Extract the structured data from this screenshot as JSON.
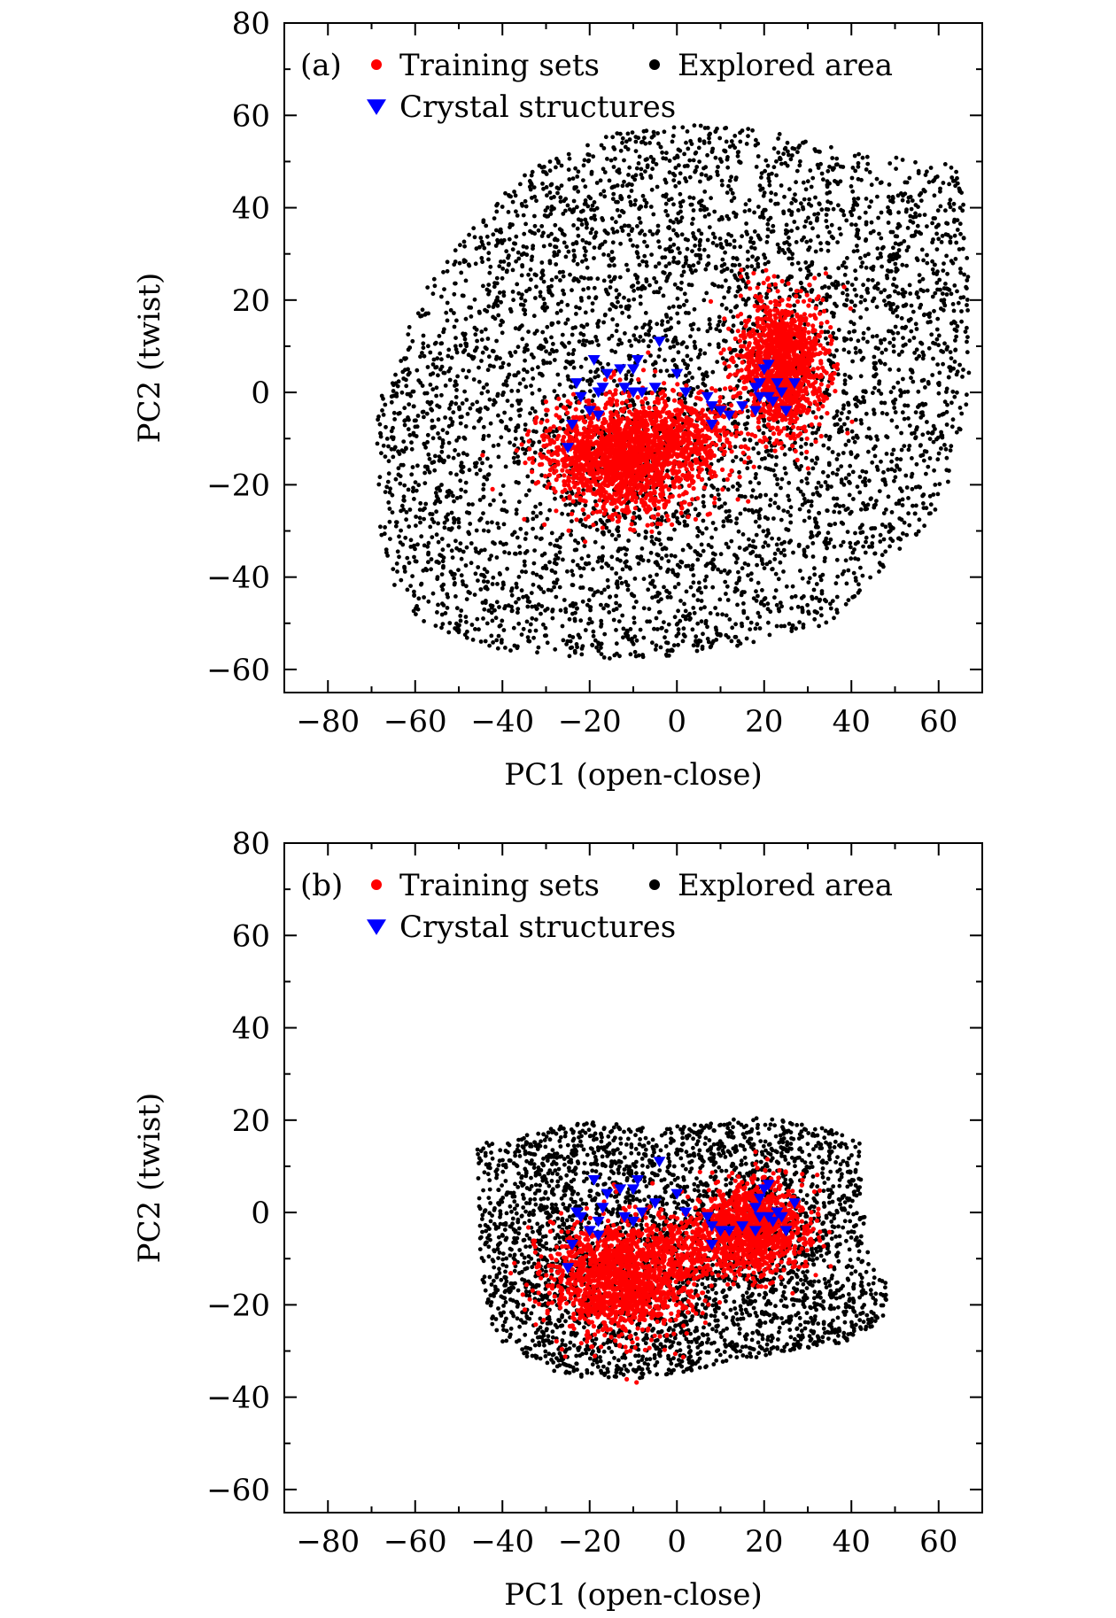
{
  "chart_data": [
    {
      "type": "scatter",
      "panel_label": "(a)",
      "xlabel": "PC1 (open-close)",
      "ylabel": "PC2 (twist)",
      "xlim": [
        -90,
        70
      ],
      "ylim": [
        -65,
        80
      ],
      "xticks": [
        -80,
        -60,
        -40,
        -20,
        0,
        20,
        40,
        60
      ],
      "yticks": [
        -60,
        -40,
        -20,
        0,
        20,
        40,
        60,
        80
      ],
      "xtick_labels": [
        "−80",
        "−60",
        "−40",
        "−20",
        "0",
        "20",
        "40",
        "60"
      ],
      "ytick_labels": [
        "−60",
        "−40",
        "−20",
        "0",
        "20",
        "40",
        "60",
        "80"
      ],
      "legend": [
        {
          "name": "Training sets",
          "marker": "circle",
          "color": "#ff0000"
        },
        {
          "name": "Explored area",
          "marker": "circle",
          "color": "#000000"
        },
        {
          "name": "Crystal structures",
          "marker": "triangle-down",
          "color": "#0000ff"
        }
      ],
      "legend_position": "top-left",
      "series": [
        {
          "name": "Explored area",
          "color": "#000000",
          "region": "wide explored region",
          "boundary": [
            [
              -69,
              -10
            ],
            [
              -68,
              -30
            ],
            [
              -64,
              -45
            ],
            [
              -55,
              -52
            ],
            [
              -40,
              -56
            ],
            [
              -20,
              -58
            ],
            [
              0,
              -57
            ],
            [
              20,
              -54
            ],
            [
              35,
              -50
            ],
            [
              48,
              -38
            ],
            [
              58,
              -28
            ],
            [
              63,
              -18
            ],
            [
              67,
              0
            ],
            [
              67,
              20
            ],
            [
              66,
              40
            ],
            [
              64,
              50
            ],
            [
              50,
              51
            ],
            [
              40,
              52
            ],
            [
              20,
              57
            ],
            [
              5,
              58
            ],
            [
              -15,
              56
            ],
            [
              -35,
              48
            ],
            [
              -48,
              35
            ],
            [
              -58,
              22
            ],
            [
              -64,
              8
            ],
            [
              -68,
              0
            ]
          ],
          "approx_count": 5000
        },
        {
          "name": "Training sets",
          "color": "#ff0000",
          "clusters": [
            {
              "center": [
                -12,
                -14
              ],
              "spread": [
                9,
                6
              ],
              "count": 1800
            },
            {
              "center": [
                24,
                6
              ],
              "spread": [
                5,
                7
              ],
              "count": 1300
            },
            {
              "center": [
                3,
                -8
              ],
              "spread": [
                7,
                4
              ],
              "count": 300
            }
          ]
        },
        {
          "name": "Crystal structures",
          "color": "#0000ff",
          "points": [
            [
              -19,
              7
            ],
            [
              -13,
              5
            ],
            [
              -9,
              7
            ],
            [
              -10,
              5
            ],
            [
              -4,
              11
            ],
            [
              -16,
              4
            ],
            [
              -23,
              2
            ],
            [
              -22,
              -1
            ],
            [
              -18,
              0
            ],
            [
              -17,
              1
            ],
            [
              -12,
              1
            ],
            [
              -10,
              0
            ],
            [
              -8,
              0
            ],
            [
              -5,
              1
            ],
            [
              0,
              4
            ],
            [
              2,
              0
            ],
            [
              7,
              -1
            ],
            [
              8,
              -3
            ],
            [
              10,
              -4
            ],
            [
              12,
              -5
            ],
            [
              -20,
              -4
            ],
            [
              -24,
              -7
            ],
            [
              -25,
              -12
            ],
            [
              -18,
              -5
            ],
            [
              8,
              -7
            ],
            [
              15,
              -3
            ],
            [
              18,
              -4
            ],
            [
              19,
              -1
            ],
            [
              19,
              2
            ],
            [
              20,
              5
            ],
            [
              21,
              6
            ],
            [
              21,
              -1
            ],
            [
              22,
              -2
            ],
            [
              23,
              2
            ],
            [
              27,
              2
            ],
            [
              25,
              -4
            ],
            [
              24,
              0
            ],
            [
              18,
              1
            ]
          ]
        }
      ]
    },
    {
      "type": "scatter",
      "panel_label": "(b)",
      "xlabel": "PC1 (open-close)",
      "ylabel": "PC2 (twist)",
      "xlim": [
        -90,
        70
      ],
      "ylim": [
        -65,
        80
      ],
      "xticks": [
        -80,
        -60,
        -40,
        -20,
        0,
        20,
        40,
        60
      ],
      "yticks": [
        -60,
        -40,
        -20,
        0,
        20,
        40,
        60,
        80
      ],
      "xtick_labels": [
        "−80",
        "−60",
        "−40",
        "−20",
        "0",
        "20",
        "40",
        "60"
      ],
      "ytick_labels": [
        "−60",
        "−40",
        "−20",
        "0",
        "20",
        "40",
        "60",
        "80"
      ],
      "legend": [
        {
          "name": "Training sets",
          "marker": "circle",
          "color": "#ff0000"
        },
        {
          "name": "Explored area",
          "marker": "circle",
          "color": "#000000"
        },
        {
          "name": "Crystal structures",
          "marker": "triangle-down",
          "color": "#0000ff"
        }
      ],
      "legend_position": "top-left",
      "series": [
        {
          "name": "Explored area",
          "color": "#000000",
          "region": "compact explored region",
          "boundary": [
            [
              -46,
              15
            ],
            [
              -45,
              -10
            ],
            [
              -44,
              -22
            ],
            [
              -40,
              -28
            ],
            [
              -30,
              -34
            ],
            [
              -20,
              -36
            ],
            [
              -5,
              -36
            ],
            [
              10,
              -33
            ],
            [
              25,
              -30
            ],
            [
              42,
              -28
            ],
            [
              48,
              -22
            ],
            [
              48,
              -15
            ],
            [
              44,
              -10
            ],
            [
              43,
              0
            ],
            [
              42,
              15
            ],
            [
              35,
              18
            ],
            [
              20,
              21
            ],
            [
              10,
              20
            ],
            [
              -5,
              18
            ],
            [
              -20,
              20
            ],
            [
              -30,
              18
            ],
            [
              -40,
              16
            ]
          ],
          "approx_count": 3400
        },
        {
          "name": "Training sets",
          "color": "#ff0000",
          "clusters": [
            {
              "center": [
                -13,
                -14
              ],
              "spread": [
                8,
                6
              ],
              "count": 1500
            },
            {
              "center": [
                18,
                -3
              ],
              "spread": [
                6,
                5
              ],
              "count": 1100
            },
            {
              "center": [
                3,
                -8
              ],
              "spread": [
                6,
                4
              ],
              "count": 250
            }
          ]
        },
        {
          "name": "Crystal structures",
          "color": "#0000ff",
          "points": [
            [
              -19,
              7
            ],
            [
              -13,
              5
            ],
            [
              -9,
              7
            ],
            [
              -10,
              5
            ],
            [
              -4,
              11
            ],
            [
              -16,
              4
            ],
            [
              -23,
              0
            ],
            [
              -22,
              -1
            ],
            [
              -18,
              -2
            ],
            [
              -17,
              1
            ],
            [
              -12,
              -1
            ],
            [
              -10,
              -2
            ],
            [
              -8,
              0
            ],
            [
              -5,
              2
            ],
            [
              0,
              4
            ],
            [
              2,
              0
            ],
            [
              7,
              -1
            ],
            [
              8,
              -3
            ],
            [
              10,
              -4
            ],
            [
              12,
              -4
            ],
            [
              -20,
              -4
            ],
            [
              -24,
              -7
            ],
            [
              -25,
              -12
            ],
            [
              -18,
              -5
            ],
            [
              8,
              -7
            ],
            [
              15,
              -3
            ],
            [
              18,
              -4
            ],
            [
              19,
              -1
            ],
            [
              19,
              3
            ],
            [
              20,
              5
            ],
            [
              21,
              6
            ],
            [
              21,
              -1
            ],
            [
              22,
              -2
            ],
            [
              23,
              0
            ],
            [
              27,
              2
            ],
            [
              25,
              -4
            ],
            [
              24,
              -1
            ],
            [
              18,
              1
            ]
          ]
        }
      ]
    }
  ]
}
